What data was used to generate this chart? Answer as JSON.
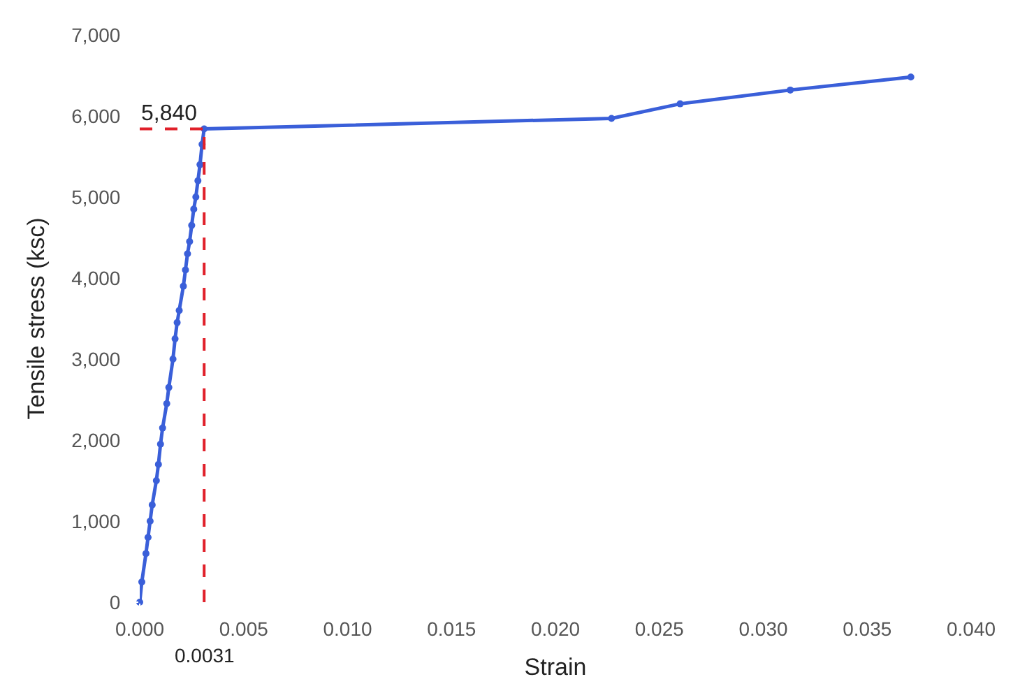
{
  "chart_data": {
    "type": "line",
    "xlabel": "Strain",
    "ylabel": "Tensile stress (ksc)",
    "x": [
      0,
      0.0001,
      0.0003,
      0.0004,
      0.0005,
      0.0006,
      0.0008,
      0.0009,
      0.001,
      0.0011,
      0.0013,
      0.0014,
      0.0016,
      0.0017,
      0.0018,
      0.0019,
      0.0021,
      0.0022,
      0.0023,
      0.0024,
      0.0025,
      0.0026,
      0.0027,
      0.0028,
      0.0029,
      0.003,
      0.0031,
      0.0227,
      0.026,
      0.0313,
      0.0371
    ],
    "series": [
      {
        "color": "#3a5fd9",
        "values": [
          0,
          250,
          600,
          800,
          1000,
          1200,
          1500,
          1700,
          1950,
          2150,
          2450,
          2650,
          3000,
          3250,
          3450,
          3600,
          3900,
          4100,
          4300,
          4450,
          4650,
          4850,
          5000,
          5200,
          5400,
          5650,
          5840,
          5970,
          6150,
          6320,
          6480
        ]
      }
    ],
    "xlim": [
      0,
      0.04
    ],
    "ylim": [
      0,
      7000
    ],
    "xticks": [
      {
        "value": 0,
        "label": "0.000"
      },
      {
        "value": 0.005,
        "label": "0.005"
      },
      {
        "value": 0.01,
        "label": "0.010"
      },
      {
        "value": 0.015,
        "label": "0.015"
      },
      {
        "value": 0.02,
        "label": "0.020"
      },
      {
        "value": 0.025,
        "label": "0.025"
      },
      {
        "value": 0.03,
        "label": "0.030"
      },
      {
        "value": 0.035,
        "label": "0.035"
      },
      {
        "value": 0.04,
        "label": "0.040"
      }
    ],
    "yticks": [
      0,
      {
        "value": 1000,
        "label": "1,000"
      },
      {
        "value": 2000,
        "label": "2,000"
      },
      {
        "value": 3000,
        "label": "3,000"
      },
      {
        "value": 4000,
        "label": "4,000"
      },
      {
        "value": 5000,
        "label": "5,000"
      },
      {
        "value": 6000,
        "label": "6,000"
      },
      {
        "value": 7000,
        "label": "7,000"
      }
    ],
    "ref_lines": [
      {
        "axis": "x",
        "value": 0.0031,
        "label": "0.0031",
        "color": "#e0202a",
        "line_style": "dashed"
      },
      {
        "axis": "y",
        "value": 5840,
        "label": "5,840",
        "color": "#e0202a",
        "line_style": "dashed"
      }
    ],
    "legend": false,
    "marker": "circle",
    "line_style": "solid"
  }
}
